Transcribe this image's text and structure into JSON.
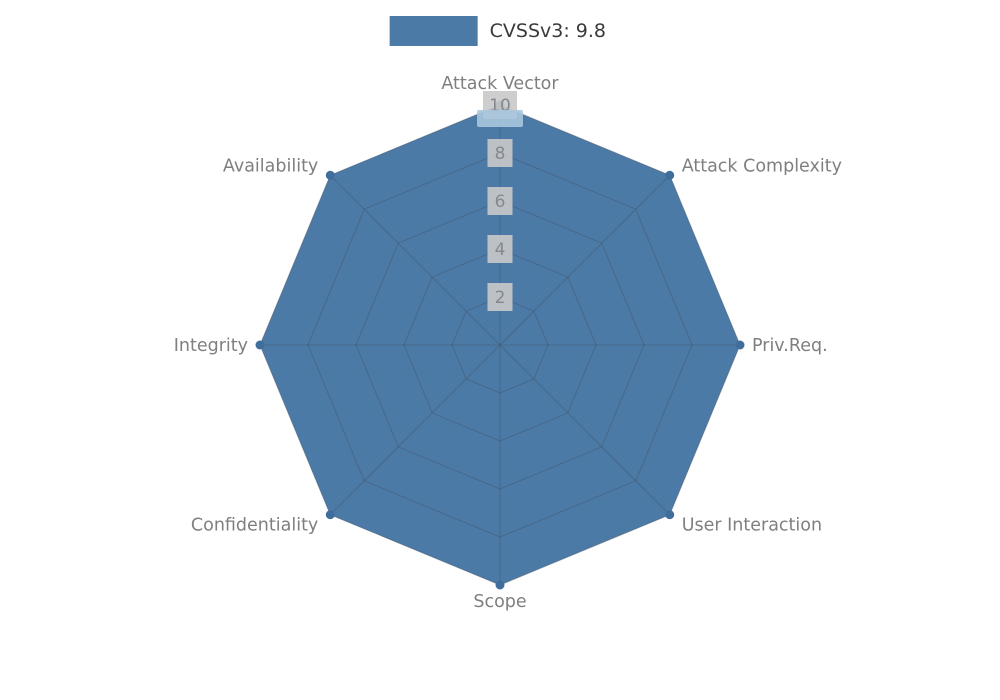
{
  "chart_data": {
    "type": "radar",
    "title": "",
    "legend": {
      "position": "top-center",
      "label": "CVSSv3: 9.8"
    },
    "categories": [
      "Attack Vector",
      "Attack Complexity",
      "Priv.Req.",
      "User Interaction",
      "Scope",
      "Confidentiality",
      "Integrity",
      "Availability"
    ],
    "series": [
      {
        "name": "CVSSv3: 9.8",
        "values": [
          10,
          10,
          10,
          10,
          10,
          10,
          10,
          10
        ]
      }
    ],
    "ticks": [
      2,
      4,
      6,
      8,
      10
    ],
    "range": [
      0,
      10
    ],
    "grid": true,
    "colors": {
      "series": "#4c7aa7",
      "vertex_dot": "#3f6e9c",
      "grid": "#44566a",
      "axis_label": "#7f7f7f",
      "tick_text": "#84898f",
      "tick_box": "#c9c9c9",
      "tick_highlight": "#a9c5dd",
      "legend_text": "#3a3a3a",
      "background": "#ffffff"
    }
  }
}
